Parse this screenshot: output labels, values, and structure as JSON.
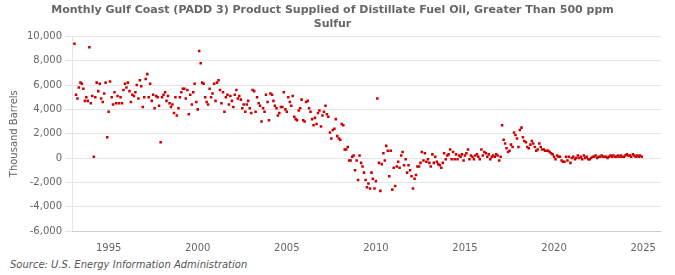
{
  "chart_data": {
    "type": "scatter",
    "title": "Monthly Gulf Coast (PADD 3) Product Supplied of Distillate Fuel Oil, Greater Than 500 ppm\nSulfur",
    "y_label": "Thousand Barrels",
    "annotations": [
      "Source: U.S. Energy Information Administration"
    ],
    "color": "#cc0000",
    "marker": "square",
    "grid": "y",
    "xlim": [
      1993.0,
      2026.0
    ],
    "ylim": [
      -6000,
      10000
    ],
    "xticks": [
      1995,
      2000,
      2005,
      2010,
      2015,
      2020,
      2025
    ],
    "yticks": [
      {
        "value": -6000,
        "label": "-6,000"
      },
      {
        "value": -4000,
        "label": "-4,000"
      },
      {
        "value": -2000,
        "label": "-2,000"
      },
      0,
      {
        "value": 2000,
        "label": "2,000"
      },
      {
        "value": 4000,
        "label": "4,000"
      },
      {
        "value": 6000,
        "label": "6,000"
      },
      {
        "value": 8000,
        "label": "8,000"
      },
      {
        "value": 10000,
        "label": "10,000"
      }
    ],
    "x": [
      1993.08,
      1993.17,
      1993.25,
      1993.33,
      1993.42,
      1993.5,
      1993.58,
      1993.67,
      1993.75,
      1993.83,
      1993.92,
      1994.0,
      1994.08,
      1994.17,
      1994.25,
      1994.33,
      1994.42,
      1994.5,
      1994.58,
      1994.67,
      1994.75,
      1994.83,
      1994.92,
      1995.0,
      1995.08,
      1995.17,
      1995.25,
      1995.33,
      1995.42,
      1995.5,
      1995.58,
      1995.67,
      1995.75,
      1995.83,
      1995.92,
      1996.0,
      1996.08,
      1996.17,
      1996.25,
      1996.33,
      1996.42,
      1996.5,
      1996.58,
      1996.67,
      1996.75,
      1996.83,
      1996.92,
      1997.0,
      1997.08,
      1997.17,
      1997.25,
      1997.33,
      1997.42,
      1997.5,
      1997.58,
      1997.67,
      1997.75,
      1997.83,
      1997.92,
      1998.0,
      1998.08,
      1998.17,
      1998.25,
      1998.33,
      1998.42,
      1998.5,
      1998.58,
      1998.67,
      1998.75,
      1998.83,
      1998.92,
      1999.0,
      1999.08,
      1999.17,
      1999.25,
      1999.33,
      1999.42,
      1999.5,
      1999.58,
      1999.67,
      1999.75,
      1999.83,
      1999.92,
      2000.0,
      2000.08,
      2000.17,
      2000.25,
      2000.33,
      2000.42,
      2000.5,
      2000.58,
      2000.67,
      2000.75,
      2000.83,
      2000.92,
      2001.0,
      2001.08,
      2001.17,
      2001.25,
      2001.33,
      2001.42,
      2001.5,
      2001.58,
      2001.67,
      2001.75,
      2001.83,
      2001.92,
      2002.0,
      2002.08,
      2002.17,
      2002.25,
      2002.33,
      2002.42,
      2002.5,
      2002.58,
      2002.67,
      2002.75,
      2002.83,
      2002.92,
      2003.0,
      2003.08,
      2003.17,
      2003.25,
      2003.33,
      2003.42,
      2003.5,
      2003.58,
      2003.67,
      2003.75,
      2003.83,
      2003.92,
      2004.0,
      2004.08,
      2004.17,
      2004.25,
      2004.33,
      2004.42,
      2004.5,
      2004.58,
      2004.67,
      2004.75,
      2004.83,
      2004.92,
      2005.0,
      2005.08,
      2005.17,
      2005.25,
      2005.33,
      2005.42,
      2005.5,
      2005.58,
      2005.67,
      2005.75,
      2005.83,
      2005.92,
      2006.0,
      2006.08,
      2006.17,
      2006.25,
      2006.33,
      2006.42,
      2006.5,
      2006.58,
      2006.67,
      2006.75,
      2006.83,
      2006.92,
      2007.0,
      2007.08,
      2007.17,
      2007.25,
      2007.33,
      2007.42,
      2007.5,
      2007.58,
      2007.67,
      2007.75,
      2007.83,
      2007.92,
      2008.0,
      2008.08,
      2008.17,
      2008.25,
      2008.33,
      2008.42,
      2008.5,
      2008.58,
      2008.67,
      2008.75,
      2008.83,
      2008.92,
      2009.0,
      2009.08,
      2009.17,
      2009.25,
      2009.33,
      2009.42,
      2009.5,
      2009.58,
      2009.67,
      2009.75,
      2009.83,
      2009.92,
      2010.0,
      2010.08,
      2010.17,
      2010.25,
      2010.33,
      2010.42,
      2010.5,
      2010.58,
      2010.67,
      2010.75,
      2010.83,
      2010.92,
      2011.0,
      2011.08,
      2011.17,
      2011.25,
      2011.33,
      2011.42,
      2011.5,
      2011.58,
      2011.67,
      2011.75,
      2011.83,
      2011.92,
      2012.0,
      2012.08,
      2012.17,
      2012.25,
      2012.33,
      2012.42,
      2012.5,
      2012.58,
      2012.67,
      2012.75,
      2012.83,
      2012.92,
      2013.0,
      2013.08,
      2013.17,
      2013.25,
      2013.33,
      2013.42,
      2013.5,
      2013.58,
      2013.67,
      2013.75,
      2013.83,
      2013.92,
      2014.0,
      2014.08,
      2014.17,
      2014.25,
      2014.33,
      2014.42,
      2014.5,
      2014.58,
      2014.67,
      2014.75,
      2014.83,
      2014.92,
      2015.0,
      2015.08,
      2015.17,
      2015.25,
      2015.33,
      2015.42,
      2015.5,
      2015.58,
      2015.67,
      2015.75,
      2015.83,
      2015.92,
      2016.0,
      2016.08,
      2016.17,
      2016.25,
      2016.33,
      2016.42,
      2016.5,
      2016.58,
      2016.67,
      2016.75,
      2016.83,
      2016.92,
      2017.0,
      2017.08,
      2017.17,
      2017.25,
      2017.33,
      2017.42,
      2017.5,
      2017.58,
      2017.67,
      2017.75,
      2017.83,
      2017.92,
      2018.0,
      2018.08,
      2018.17,
      2018.25,
      2018.33,
      2018.42,
      2018.5,
      2018.58,
      2018.67,
      2018.75,
      2018.83,
      2018.92,
      2019.0,
      2019.08,
      2019.17,
      2019.25,
      2019.33,
      2019.42,
      2019.5,
      2019.58,
      2019.67,
      2019.75,
      2019.83,
      2019.92,
      2020.0,
      2020.08,
      2020.17,
      2020.25,
      2020.33,
      2020.42,
      2020.5,
      2020.58,
      2020.67,
      2020.75,
      2020.83,
      2020.92,
      2021.0,
      2021.08,
      2021.17,
      2021.25,
      2021.33,
      2021.42,
      2021.5,
      2021.58,
      2021.67,
      2021.75,
      2021.83,
      2021.92,
      2022.0,
      2022.08,
      2022.17,
      2022.25,
      2022.33,
      2022.42,
      2022.5,
      2022.58,
      2022.67,
      2022.75,
      2022.83,
      2022.92,
      2023.0,
      2023.08,
      2023.17,
      2023.25,
      2023.33,
      2023.42,
      2023.5,
      2023.58,
      2023.67,
      2023.75,
      2023.83,
      2023.92,
      2024.0,
      2024.08,
      2024.17,
      2024.25,
      2024.33,
      2024.42,
      2024.5,
      2024.58,
      2024.67,
      2024.75,
      2024.83,
      2024.92
    ],
    "values": [
      9400,
      5200,
      4900,
      5800,
      6200,
      6100,
      5700,
      4700,
      5000,
      4700,
      9100,
      4500,
      5100,
      100,
      5000,
      6200,
      5500,
      6100,
      4900,
      4600,
      5300,
      6200,
      1700,
      3800,
      6300,
      5000,
      4400,
      5400,
      4500,
      5100,
      4500,
      5000,
      4500,
      5600,
      6100,
      5800,
      6200,
      5500,
      4600,
      5200,
      5100,
      5400,
      6000,
      4900,
      6400,
      5900,
      4200,
      5000,
      6500,
      6900,
      5000,
      6100,
      4700,
      5200,
      4100,
      5100,
      5000,
      4300,
      1300,
      5000,
      5200,
      5400,
      4700,
      5100,
      4500,
      4200,
      4400,
      3700,
      5000,
      3500,
      4100,
      5000,
      5400,
      5700,
      5700,
      4900,
      5600,
      3600,
      5200,
      4400,
      5400,
      6100,
      4600,
      4000,
      8800,
      7800,
      6200,
      6100,
      5000,
      4600,
      4400,
      5700,
      5000,
      5300,
      6100,
      4700,
      6200,
      6400,
      5600,
      4500,
      5400,
      3800,
      5000,
      5200,
      4400,
      5100,
      4700,
      4200,
      5200,
      5600,
      4900,
      5100,
      4800,
      4100,
      4400,
      3800,
      4400,
      4700,
      4100,
      3700,
      5600,
      5500,
      3800,
      5000,
      4500,
      4300,
      3000,
      4100,
      3800,
      5200,
      4600,
      3100,
      5300,
      5200,
      4700,
      4300,
      4100,
      3500,
      3700,
      4200,
      4200,
      5400,
      4000,
      3800,
      5000,
      4600,
      4300,
      5100,
      3400,
      3200,
      3100,
      3900,
      4100,
      4800,
      3100,
      3000,
      4600,
      4700,
      4100,
      3800,
      3200,
      2700,
      3300,
      2800,
      3700,
      3900,
      2600,
      3500,
      3800,
      4300,
      3600,
      3400,
      2100,
      1600,
      2300,
      2400,
      3200,
      1800,
      1600,
      1500,
      2800,
      2700,
      700,
      700,
      900,
      -200,
      -200,
      100,
      200,
      -1000,
      -200,
      -1800,
      200,
      -400,
      -700,
      -1200,
      -1800,
      -2400,
      -2100,
      -2500,
      -1200,
      -1700,
      -2500,
      -1900,
      4900,
      -400,
      -2700,
      -500,
      400,
      -200,
      1000,
      600,
      -1500,
      600,
      -2600,
      -800,
      -2300,
      -700,
      -300,
      -800,
      200,
      500,
      -600,
      -100,
      -1200,
      -600,
      -1000,
      -1500,
      -2500,
      -1700,
      -1400,
      -700,
      -700,
      -400,
      500,
      -200,
      400,
      -300,
      -100,
      -400,
      -700,
      300,
      -400,
      100,
      -300,
      -500,
      -600,
      -800,
      -400,
      400,
      -100,
      200,
      300,
      700,
      -100,
      500,
      -100,
      300,
      -100,
      200,
      100,
      300,
      -200,
      200,
      400,
      700,
      -100,
      200,
      100,
      -100,
      200,
      300,
      100,
      -100,
      700,
      200,
      500,
      400,
      100,
      300,
      -100,
      100,
      200,
      100,
      300,
      200,
      -200,
      100,
      2700,
      1500,
      1200,
      800,
      500,
      600,
      1100,
      900,
      2100,
      1900,
      1600,
      900,
      2300,
      2500,
      1700,
      1400,
      1300,
      900,
      800,
      1100,
      1400,
      1200,
      900,
      600,
      700,
      1200,
      900,
      700,
      700,
      600,
      600,
      600,
      500,
      400,
      300,
      100,
      -100,
      200,
      100,
      100,
      -200,
      -300,
      -300,
      100,
      -200,
      100,
      -400,
      0,
      100,
      -100,
      0,
      200,
      0,
      100,
      -100,
      200,
      0,
      100,
      -100,
      -100,
      0,
      100,
      100,
      200,
      0,
      100,
      100,
      200,
      100,
      100,
      100,
      0,
      100,
      200,
      100,
      200,
      100,
      100,
      200,
      100,
      200,
      100,
      100,
      200,
      300,
      200,
      200,
      100,
      300,
      200,
      100,
      200,
      100,
      200,
      100
    ]
  }
}
